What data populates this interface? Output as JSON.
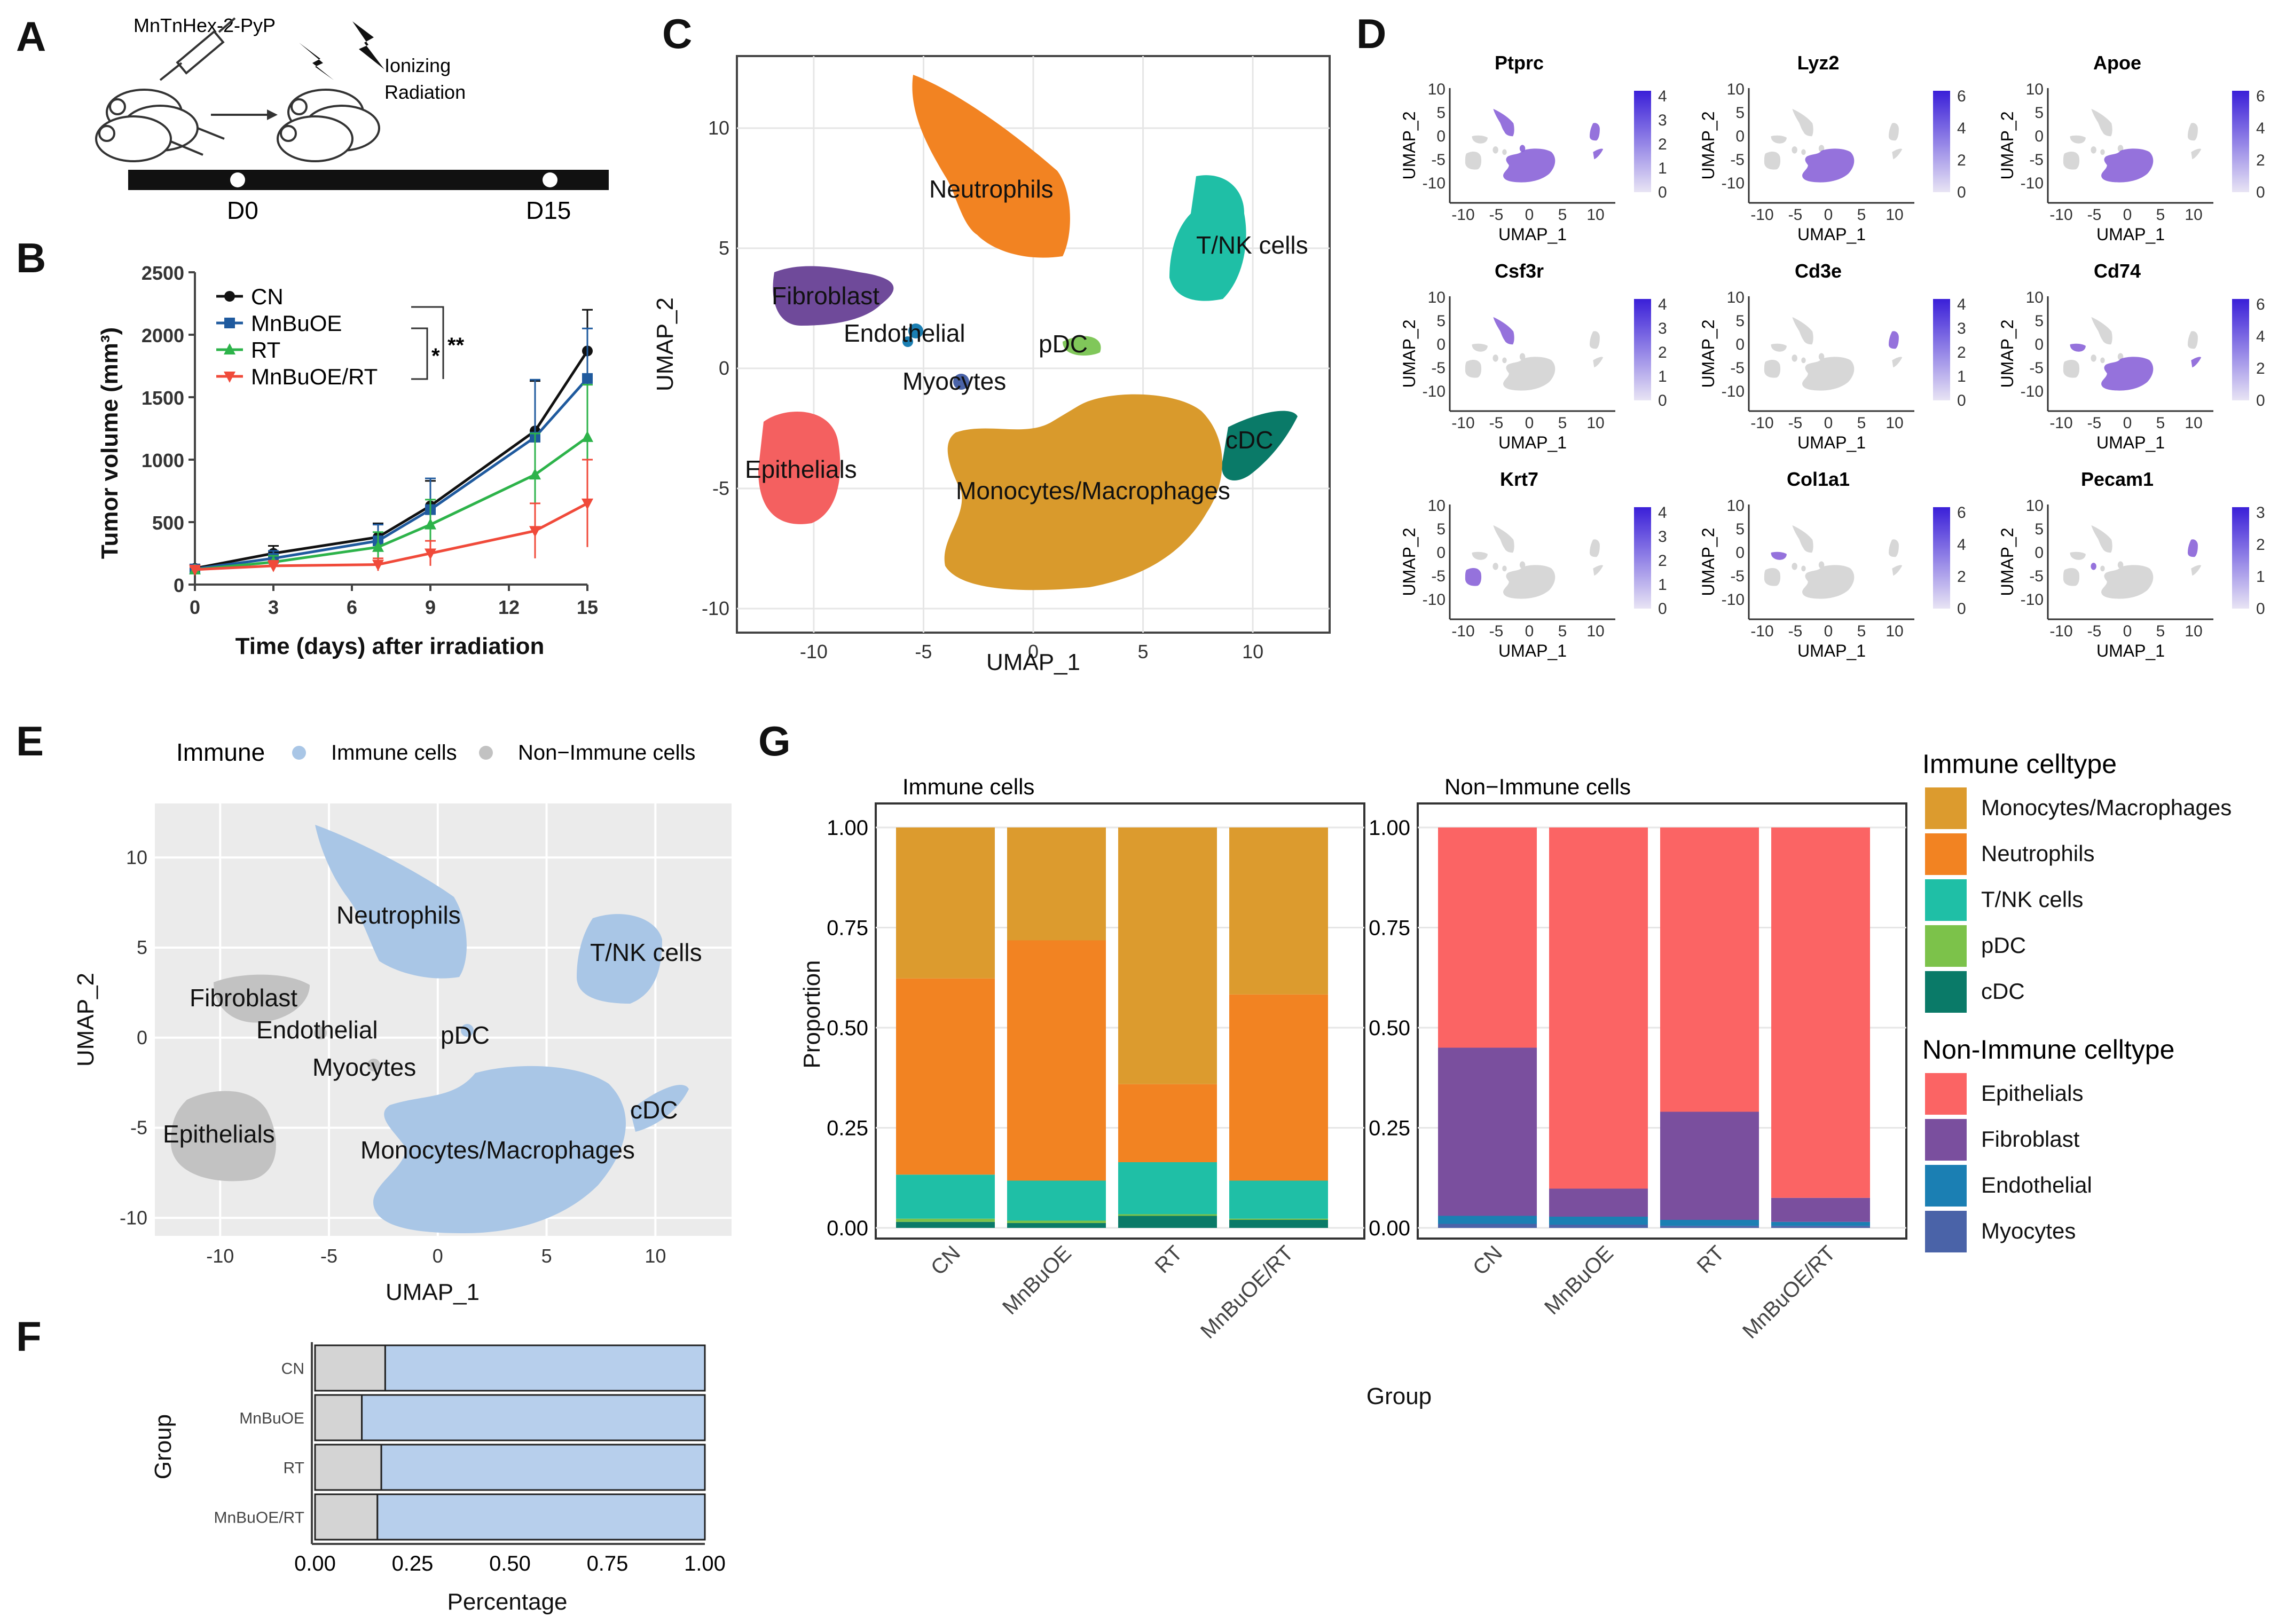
{
  "panels": {
    "A": "A",
    "B": "B",
    "C": "C",
    "D": "D",
    "E": "E",
    "F": "F",
    "G": "G"
  },
  "panel_a": {
    "drug": "MnTnHex-2-PyP",
    "radiation_line1": "Ionizing",
    "radiation_line2": "Radiation",
    "timepoints": [
      "D0",
      "D15"
    ],
    "colors": {
      "bar": "#111111",
      "point": "#ffffff"
    }
  },
  "panel_b": {
    "type": "line",
    "xlabel": "Time (days) after irradiation",
    "ylabel": "Tumor volume (mm³)",
    "xlim": [
      0,
      15
    ],
    "ylim": [
      0,
      2500
    ],
    "xticks": [
      0,
      3,
      6,
      9,
      12,
      15
    ],
    "yticks": [
      0,
      500,
      1000,
      1500,
      2000,
      2500
    ],
    "x": [
      0,
      3,
      7,
      9,
      13,
      15
    ],
    "series": [
      {
        "name": "CN",
        "color": "#111111",
        "marker": "circle",
        "values": [
          130,
          250,
          380,
          630,
          1230,
          1870
        ],
        "errors": [
          30,
          60,
          110,
          200,
          400,
          330
        ]
      },
      {
        "name": "MnBuOE",
        "color": "#1f5a9e",
        "marker": "square",
        "values": [
          125,
          210,
          350,
          600,
          1180,
          1650
        ],
        "errors": [
          25,
          60,
          130,
          250,
          460,
          400
        ]
      },
      {
        "name": "RT",
        "color": "#2db34a",
        "marker": "triangle-up",
        "values": [
          120,
          180,
          300,
          480,
          880,
          1180
        ],
        "errors": [
          25,
          50,
          120,
          200,
          330,
          420
        ]
      },
      {
        "name": "MnBuOE/RT",
        "color": "#f04a3a",
        "marker": "triangle-down",
        "values": [
          120,
          150,
          160,
          250,
          430,
          650
        ],
        "errors": [
          20,
          40,
          50,
          100,
          220,
          350
        ]
      }
    ],
    "significance": [
      "*",
      "**"
    ]
  },
  "panel_c": {
    "xlabel": "UMAP_1",
    "ylabel": "UMAP_2",
    "xlim": [
      -13.5,
      13.5
    ],
    "ylim": [
      -11,
      13
    ],
    "xticks": [
      -10,
      -5,
      0,
      5,
      10
    ],
    "yticks": [
      -10,
      -5,
      0,
      5,
      10
    ],
    "clusters": [
      {
        "name": "Neutrophils",
        "color": "#f28322"
      },
      {
        "name": "T/NK cells",
        "color": "#1fbfa6"
      },
      {
        "name": "Fibroblast",
        "color": "#6f4a9a"
      },
      {
        "name": "Endothelial",
        "color": "#1b7fb3"
      },
      {
        "name": "pDC",
        "color": "#80c75a"
      },
      {
        "name": "Myocytes",
        "color": "#4a63a8"
      },
      {
        "name": "cDC",
        "color": "#0a7a68"
      },
      {
        "name": "Epithelials",
        "color": "#f46060"
      },
      {
        "name": "Monocytes/Macrophages",
        "color": "#d99a2c"
      }
    ]
  },
  "panel_d": {
    "xlabel": "UMAP_1",
    "ylabel": "UMAP_2",
    "xticks": [
      -10,
      -5,
      0,
      5,
      10
    ],
    "yticks": [
      -10,
      -5,
      0,
      5,
      10
    ],
    "genes": [
      {
        "name": "Ptprc",
        "scale": [
          0,
          1,
          2,
          3,
          4
        ],
        "highlight": "immune"
      },
      {
        "name": "Lyz2",
        "scale": [
          0,
          2,
          4,
          6
        ],
        "highlight": "mono"
      },
      {
        "name": "Apoe",
        "scale": [
          0,
          2,
          4,
          6
        ],
        "highlight": "mono"
      },
      {
        "name": "Csf3r",
        "scale": [
          0,
          1,
          2,
          3,
          4
        ],
        "highlight": "neut"
      },
      {
        "name": "Cd3e",
        "scale": [
          0,
          1,
          2,
          3,
          4
        ],
        "highlight": "tnk"
      },
      {
        "name": "Cd74",
        "scale": [
          0,
          2,
          4,
          6
        ],
        "highlight": "cd74"
      },
      {
        "name": "Krt7",
        "scale": [
          0,
          1,
          2,
          3,
          4
        ],
        "highlight": "epi"
      },
      {
        "name": "Col1a1",
        "scale": [
          0,
          2,
          4,
          6
        ],
        "highlight": "fib"
      },
      {
        "name": "Pecam1",
        "scale": [
          0,
          1,
          2,
          3
        ],
        "highlight": "endo"
      }
    ]
  },
  "panel_e": {
    "legend_title": "Immune",
    "legend": [
      {
        "name": "Immune cells",
        "color": "#a9c6e6"
      },
      {
        "name": "Non−Immune cells",
        "color": "#c2c2c2"
      }
    ],
    "xlabel": "UMAP_1",
    "ylabel": "UMAP_2",
    "xticks": [
      -10,
      -5,
      0,
      5,
      10
    ],
    "yticks": [
      -10,
      -5,
      0,
      5,
      10
    ]
  },
  "panel_f": {
    "type": "bar",
    "xlabel": "Percentage",
    "ylabel": "Group",
    "xticks": [
      "0.00",
      "0.25",
      "0.50",
      "0.75",
      "1.00"
    ],
    "categories": [
      "CN",
      "MnBuOE",
      "RT",
      "MnBuOE/RT"
    ],
    "non_immune": [
      0.18,
      0.12,
      0.17,
      0.16
    ],
    "colors": {
      "immune": "#b7cfec",
      "non_immune": "#d4d4d4"
    }
  },
  "panel_g": {
    "ylabel": "Proportion",
    "xlabel": "Group",
    "yticks": [
      "0.00",
      "0.25",
      "0.50",
      "0.75",
      "1.00"
    ],
    "facets": [
      {
        "title": "Immune cells",
        "categories": [
          "CN",
          "MnBuOE",
          "RT",
          "MnBuOE/RT"
        ],
        "stack": [
          {
            "name": "cDC",
            "color": "#0a7a68",
            "values": [
              0.015,
              0.012,
              0.03,
              0.02
            ]
          },
          {
            "name": "pDC",
            "color": "#7cc24a",
            "values": [
              0.008,
              0.006,
              0.004,
              0.003
            ]
          },
          {
            "name": "T/NK cells",
            "color": "#1fbfa6",
            "values": [
              0.11,
              0.1,
              0.13,
              0.095
            ]
          },
          {
            "name": "Neutrophils",
            "color": "#f28322",
            "values": [
              0.49,
              0.6,
              0.195,
              0.465
            ]
          },
          {
            "name": "Monocytes/Macrophages",
            "color": "#dc9b2e",
            "values": [
              0.377,
              0.282,
              0.641,
              0.417
            ]
          }
        ]
      },
      {
        "title": "Non−Immune cells",
        "categories": [
          "CN",
          "MnBuOE",
          "RT",
          "MnBuOE/RT"
        ],
        "stack": [
          {
            "name": "Myocytes",
            "color": "#4a63a8",
            "values": [
              0.01,
              0.008,
              0.005,
              0.005
            ]
          },
          {
            "name": "Endothelial",
            "color": "#1b7fb3",
            "values": [
              0.02,
              0.02,
              0.015,
              0.01
            ]
          },
          {
            "name": "Fibroblast",
            "color": "#7a4f9e",
            "values": [
              0.42,
              0.07,
              0.27,
              0.06
            ]
          },
          {
            "name": "Epithelials",
            "color": "#fb6464",
            "values": [
              0.55,
              0.902,
              0.71,
              0.925
            ]
          }
        ]
      }
    ],
    "legend": [
      {
        "title": "Immune celltype",
        "items": [
          {
            "name": "Monocytes/Macrophages",
            "color": "#dc9b2e"
          },
          {
            "name": "Neutrophils",
            "color": "#f28322"
          },
          {
            "name": "T/NK cells",
            "color": "#1fbfa6"
          },
          {
            "name": "pDC",
            "color": "#7cc24a"
          },
          {
            "name": "cDC",
            "color": "#0a7a68"
          }
        ]
      },
      {
        "title": "Non-Immune celltype",
        "items": [
          {
            "name": "Epithelials",
            "color": "#fb6464"
          },
          {
            "name": "Fibroblast",
            "color": "#7a4f9e"
          },
          {
            "name": "Endothelial",
            "color": "#1b7fb3"
          },
          {
            "name": "Myocytes",
            "color": "#4a63a8"
          }
        ]
      }
    ]
  }
}
